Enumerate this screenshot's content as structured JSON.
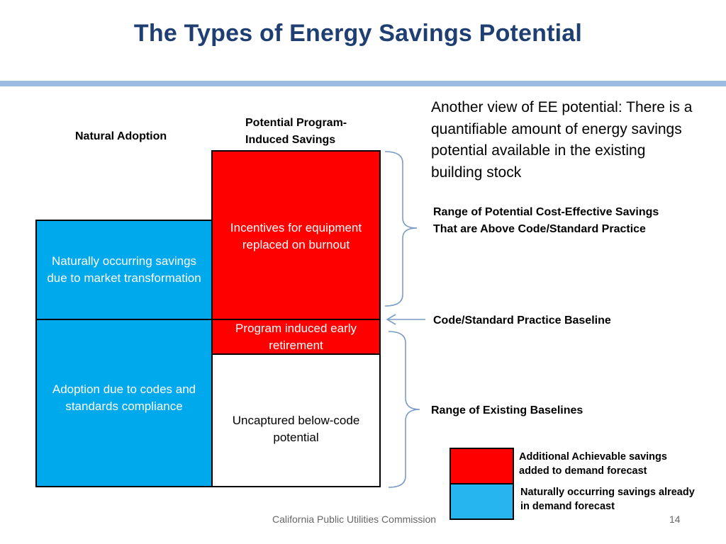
{
  "title": "The Types of Energy Savings Potential",
  "headers": {
    "natural_adoption": "Natural Adoption",
    "program_induced": "Potential Program-Induced Savings"
  },
  "boxes": {
    "naturally_occurring": "Naturally occurring savings due to market transformation",
    "codes_standards": "Adoption due to codes and standards compliance",
    "incentives": "Incentives for equipment replaced on burnout",
    "early_retirement": "Program induced early retirement",
    "uncaptured": "Uncaptured below-code potential"
  },
  "description": "Another view of EE potential: There is a quantifiable amount of energy savings potential available in the existing building stock",
  "annotations": {
    "range_above_code": "Range of Potential Cost-Effective Savings That are Above Code/Standard Practice",
    "baseline": "Code/Standard Practice Baseline",
    "range_existing": "Range of Existing Baselines"
  },
  "legend": {
    "additional": "Additional Achievable savings added to demand forecast",
    "naturally": "Naturally occurring savings already in demand forecast"
  },
  "footer": {
    "org": "California Public Utilities Commission",
    "page": "14"
  },
  "colors": {
    "title": "#1f3f73",
    "rule": "#9bbbe0",
    "blue": "#00a8ec",
    "red": "#ff0000",
    "legend_blue": "#26b5ef",
    "bracket": "#7a9cc6"
  }
}
